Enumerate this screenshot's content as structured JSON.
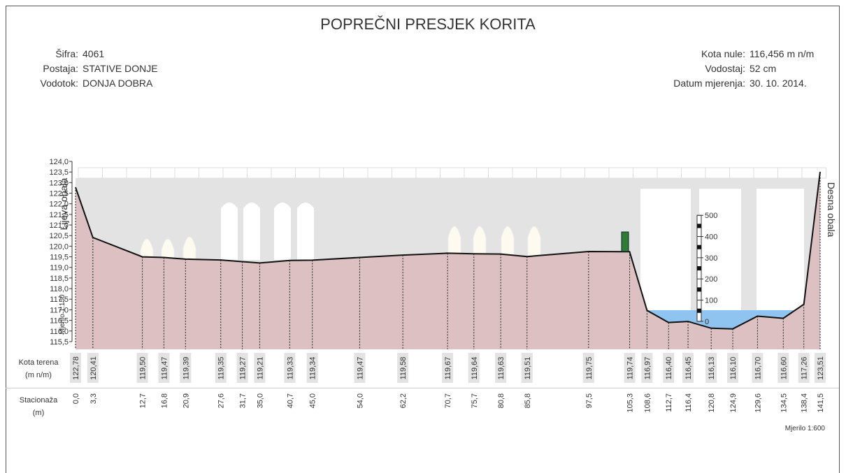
{
  "chart_data": {
    "type": "area",
    "title": "POPREČNI PRESJEK KORITA",
    "info_left": [
      {
        "label": "Šifra:",
        "value": "4061"
      },
      {
        "label": "Postaja:",
        "value": "STATIVE DONJE"
      },
      {
        "label": "Vodotok:",
        "value": "DONJA DOBRA"
      }
    ],
    "info_right": [
      {
        "label": "Kota nule:",
        "value": "116,456 m n/m"
      },
      {
        "label": "Vodostaj:",
        "value": "52 cm"
      },
      {
        "label": "Datum mjerenja:",
        "value": "30. 10. 2014."
      }
    ],
    "left_bank": "Lijeva obala",
    "right_bank": "Desna obala",
    "scale_vertical": "Mjerilo 1:150",
    "scale_horizontal": "Mjerilo 1:600",
    "x_row_label": "Stacionaža",
    "x_row_unit": "(m)",
    "x": [
      0,
      3.3,
      12.7,
      16.8,
      20.9,
      27.6,
      31.7,
      35.0,
      40.7,
      45.0,
      54.0,
      62.2,
      70.7,
      75.7,
      80.8,
      85.8,
      97.5,
      105.3,
      108.6,
      112.7,
      116.4,
      120.8,
      124.9,
      129.6,
      134.5,
      138.4,
      141.5
    ],
    "x_labels": [
      "0,0",
      "3,3",
      "12,7",
      "16,8",
      "20,9",
      "27,6",
      "31,7",
      "35,0",
      "40,7",
      "45,0",
      "54,0",
      "62,2",
      "70,7",
      "75,7",
      "80,8",
      "85,8",
      "97,5",
      "105,3",
      "108,6",
      "112,7",
      "116,4",
      "120,8",
      "124,9",
      "129,6",
      "134,5",
      "138,4",
      "141,5"
    ],
    "xlim": [
      0,
      141.5
    ],
    "series": [
      {
        "name": "Kota terena",
        "unit": "(m n/m)",
        "color": "#dcc0c2",
        "values": [
          122.78,
          120.41,
          119.5,
          119.47,
          119.39,
          119.35,
          119.27,
          119.21,
          119.33,
          119.34,
          119.47,
          119.58,
          119.67,
          119.64,
          119.63,
          119.51,
          119.75,
          119.74,
          116.97,
          116.4,
          116.45,
          116.13,
          116.1,
          116.7,
          116.6,
          117.26,
          123.51
        ],
        "value_labels": [
          "122,78",
          "120,41",
          "119,50",
          "119,47",
          "119,39",
          "119,35",
          "119,27",
          "119,21",
          "119,33",
          "119,34",
          "119,47",
          "119,58",
          "119,67",
          "119,64",
          "119,63",
          "119,51",
          "119,75",
          "119,74",
          "116,97",
          "116,40",
          "116,45",
          "116,13",
          "116,10",
          "116,70",
          "116,60",
          "117,26",
          "123,51"
        ]
      }
    ],
    "water_level": 116.98,
    "water_color": "#8fc3f0",
    "gauge": {
      "zero": 116.456,
      "ticks": [
        0,
        100,
        200,
        300,
        400,
        500
      ]
    },
    "ylim": [
      115.3,
      124.0
    ],
    "yticks": [
      {
        "value": 115.5,
        "label": "115,5"
      },
      {
        "value": 116,
        "label": "116,0"
      },
      {
        "value": 116.5,
        "label": "116,5"
      },
      {
        "value": 117,
        "label": "117,0"
      },
      {
        "value": 117.5,
        "label": "117,5"
      },
      {
        "value": 118,
        "label": "118,0"
      },
      {
        "value": 118.5,
        "label": "118,5"
      },
      {
        "value": 119,
        "label": "119,0"
      },
      {
        "value": 119.5,
        "label": "119,5"
      },
      {
        "value": 120,
        "label": "120,0"
      },
      {
        "value": 120.5,
        "label": "120,5"
      },
      {
        "value": 121,
        "label": "121,0"
      },
      {
        "value": 121.5,
        "label": "121,5"
      },
      {
        "value": 122,
        "label": "122,0"
      },
      {
        "value": 122.5,
        "label": "122,5"
      },
      {
        "value": 123,
        "label": "123,0"
      },
      {
        "value": 123.5,
        "label": "123,5"
      },
      {
        "value": 124,
        "label": "124,0"
      }
    ]
  }
}
